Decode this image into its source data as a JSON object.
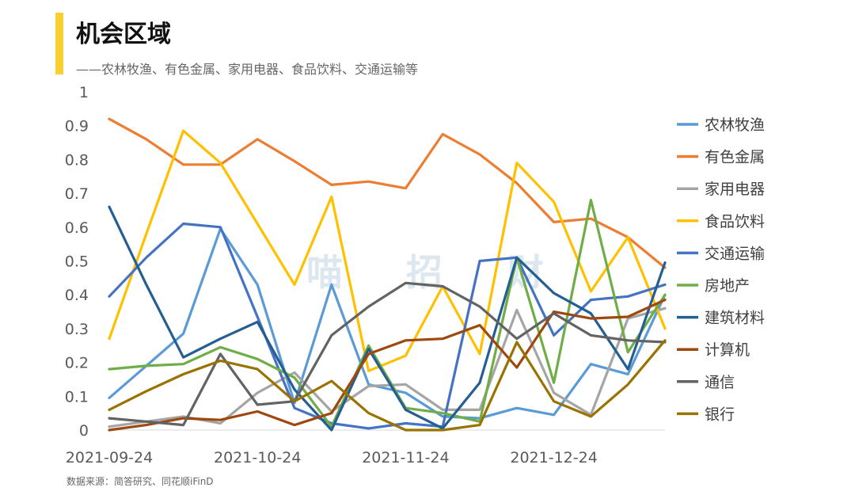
{
  "header": {
    "title": "机会区域",
    "subtitle": "——农林牧渔、有色金属、家用电器、食品饮料、交通运输等"
  },
  "source_note": "数据来源：简答研究、同花顺iFinD",
  "watermark": [
    "喵",
    "招",
    "财"
  ],
  "chart_data": {
    "type": "line",
    "title": "机会区域",
    "xlabel": "",
    "ylabel": "",
    "ylim": [
      0,
      1
    ],
    "yticks": [
      "0",
      "0.1",
      "0.2",
      "0.3",
      "0.4",
      "0.5",
      "0.6",
      "0.7",
      "0.8",
      "0.9",
      "1"
    ],
    "x_tick_labels": [
      "2021-09-24",
      "2021-10-24",
      "2021-11-24",
      "2021-12-24"
    ],
    "x_tick_positions": [
      0,
      4,
      8,
      12
    ],
    "grid": false,
    "legend_position": "right",
    "series": [
      {
        "name": "农林牧渔",
        "color": "#5b9bd5",
        "values": [
          0.095,
          0.19,
          0.285,
          0.595,
          0.43,
          0.08,
          0.43,
          0.135,
          0.11,
          0.04,
          0.035,
          0.065,
          0.045,
          0.195,
          0.165,
          0.4
        ]
      },
      {
        "name": "有色金属",
        "color": "#ed7d31",
        "values": [
          0.92,
          0.86,
          0.785,
          0.785,
          0.86,
          0.795,
          0.725,
          0.735,
          0.715,
          0.875,
          0.815,
          0.73,
          0.615,
          0.625,
          0.57,
          0.48
        ]
      },
      {
        "name": "家用电器",
        "color": "#a5a5a5",
        "values": [
          0.01,
          0.025,
          0.04,
          0.02,
          0.11,
          0.17,
          0.055,
          0.13,
          0.135,
          0.06,
          0.06,
          0.355,
          0.11,
          0.045,
          0.33,
          0.36
        ]
      },
      {
        "name": "食品饮料",
        "color": "#ffc000",
        "values": [
          0.27,
          0.58,
          0.885,
          0.79,
          0.61,
          0.43,
          0.69,
          0.175,
          0.22,
          0.425,
          0.225,
          0.79,
          0.675,
          0.41,
          0.57,
          0.3
        ]
      },
      {
        "name": "交通运输",
        "color": "#4472c4",
        "values": [
          0.395,
          0.51,
          0.61,
          0.6,
          0.335,
          0.065,
          0.02,
          0.005,
          0.02,
          0.01,
          0.5,
          0.51,
          0.28,
          0.385,
          0.395,
          0.43
        ]
      },
      {
        "name": "房地产",
        "color": "#70ad47",
        "values": [
          0.18,
          0.19,
          0.195,
          0.245,
          0.21,
          0.155,
          0.01,
          0.25,
          0.065,
          0.05,
          0.025,
          0.51,
          0.14,
          0.68,
          0.23,
          0.4
        ]
      },
      {
        "name": "建筑材料",
        "color": "#255e91",
        "values": [
          0.66,
          0.43,
          0.215,
          0.27,
          0.32,
          0.12,
          0.0,
          0.24,
          0.06,
          0.005,
          0.14,
          0.51,
          0.405,
          0.345,
          0.18,
          0.495
        ]
      },
      {
        "name": "计算机",
        "color": "#9e480e",
        "values": [
          0.0,
          0.015,
          0.035,
          0.03,
          0.055,
          0.015,
          0.05,
          0.225,
          0.265,
          0.27,
          0.31,
          0.185,
          0.35,
          0.33,
          0.335,
          0.385
        ]
      },
      {
        "name": "通信",
        "color": "#636363",
        "values": [
          0.035,
          0.025,
          0.015,
          0.225,
          0.075,
          0.085,
          0.28,
          0.365,
          0.435,
          0.425,
          0.365,
          0.27,
          0.345,
          0.28,
          0.265,
          0.26
        ]
      },
      {
        "name": "银行",
        "color": "#997300",
        "values": [
          0.06,
          0.115,
          0.165,
          0.205,
          0.18,
          0.085,
          0.145,
          0.05,
          0.0,
          0.0,
          0.015,
          0.26,
          0.085,
          0.04,
          0.135,
          0.265
        ]
      }
    ]
  }
}
